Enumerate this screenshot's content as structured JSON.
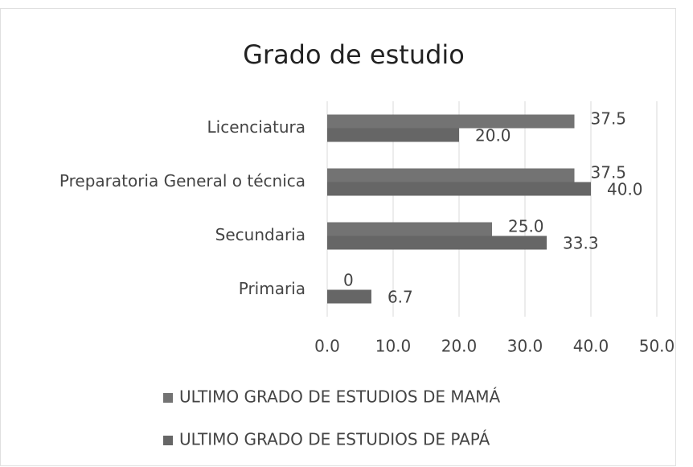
{
  "chart_data": {
    "type": "bar",
    "orientation": "horizontal",
    "title": "Grado de estudio",
    "categories": [
      "Licenciatura",
      "Preparatoria General  o técnica",
      "Secundaria",
      "Primaria"
    ],
    "series": [
      {
        "name": "ULTIMO GRADO DE ESTUDIOS DE MAMÁ",
        "color": "#737373",
        "values": [
          37.5,
          37.5,
          25.0,
          0
        ],
        "value_labels": [
          "37.5",
          "37.5",
          "25.0",
          "0"
        ]
      },
      {
        "name": "ULTIMO GRADO DE ESTUDIOS DE PAPÁ",
        "color": "#666666",
        "values": [
          20.0,
          40.0,
          33.3,
          6.7
        ],
        "value_labels": [
          "20.0",
          "40.0",
          "33.3",
          "6.7"
        ]
      }
    ],
    "xlim": [
      0,
      50
    ],
    "xticks": [
      {
        "value": 0,
        "label": "0.0"
      },
      {
        "value": 10,
        "label": "10.0"
      },
      {
        "value": 20,
        "label": "20.0"
      },
      {
        "value": 30,
        "label": "30.0"
      },
      {
        "value": 40,
        "label": "40.0"
      },
      {
        "value": 50,
        "label": "50.0"
      }
    ],
    "grid": true,
    "legend": "bottom"
  }
}
